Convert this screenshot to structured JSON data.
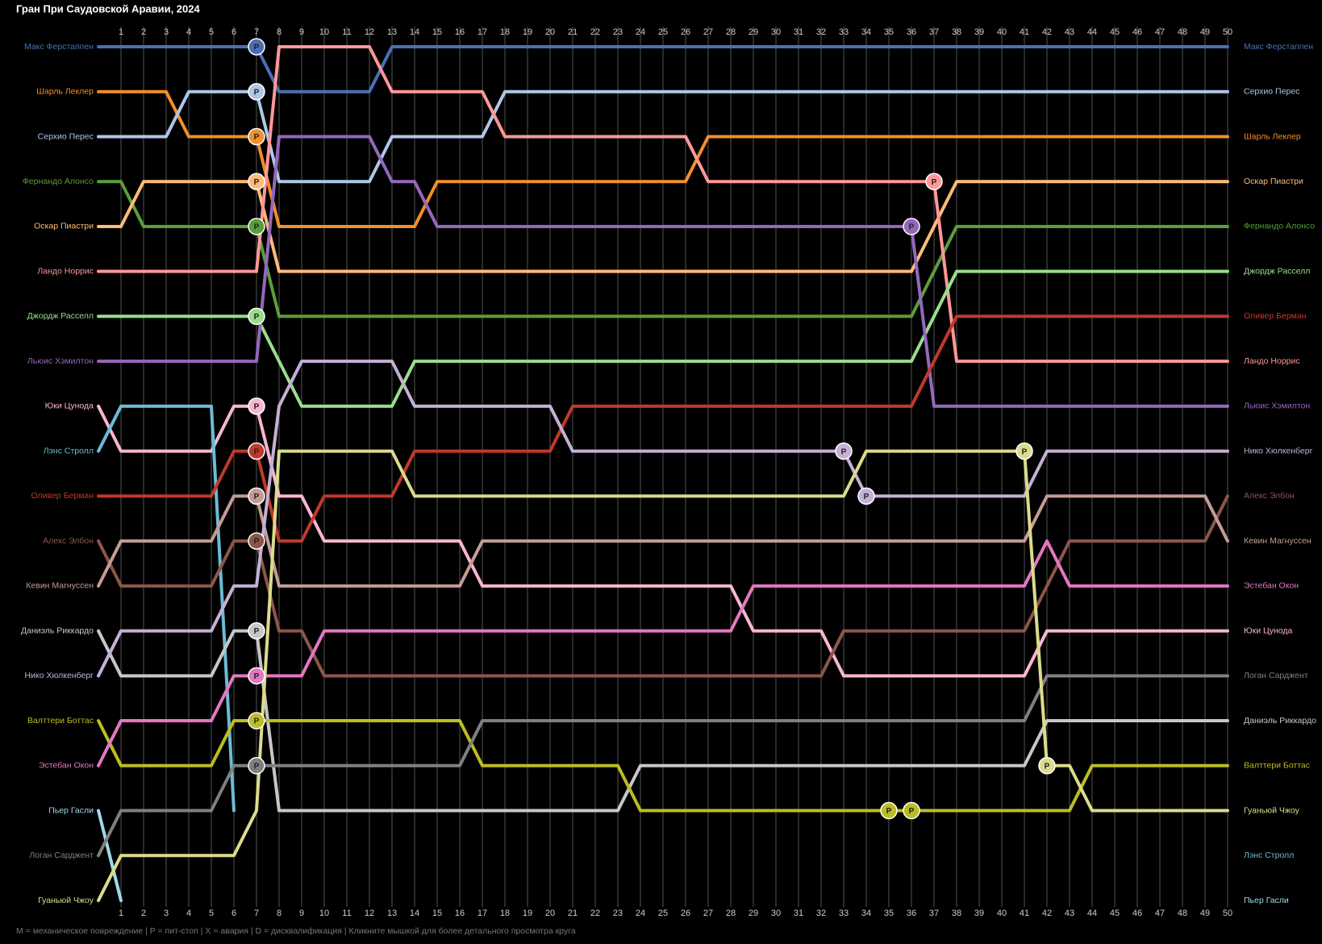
{
  "chart_data": {
    "type": "bump",
    "title": "Гран При Саудовской Аравии, 2024",
    "footnote": "M = механическое повреждение | P = пит-стоп | X = авария | D = дисквалификация | Кликните мышкой для более детального просмотра круга",
    "pit_label": "P",
    "x": [
      0,
      1,
      2,
      3,
      4,
      5,
      6,
      7,
      8,
      9,
      10,
      11,
      12,
      13,
      14,
      15,
      16,
      17,
      18,
      19,
      20,
      21,
      22,
      23,
      24,
      25,
      26,
      27,
      28,
      29,
      30,
      31,
      32,
      33,
      34,
      35,
      36,
      37,
      38,
      39,
      40,
      41,
      42,
      43,
      44,
      45,
      46,
      47,
      48,
      49,
      50
    ],
    "xlim": [
      0,
      50
    ],
    "xticks": [
      1,
      2,
      3,
      4,
      5,
      6,
      7,
      8,
      9,
      10,
      11,
      12,
      13,
      14,
      15,
      16,
      17,
      18,
      19,
      20,
      21,
      22,
      23,
      24,
      25,
      26,
      27,
      28,
      29,
      30,
      31,
      32,
      33,
      34,
      35,
      36,
      37,
      38,
      39,
      40,
      41,
      42,
      43,
      44,
      45,
      46,
      47,
      48,
      49,
      50
    ],
    "ylim": [
      1,
      20
    ],
    "series": [
      {
        "name": "Макс Ферстаппен",
        "color": "#4a6fb5",
        "finish": 1,
        "pits": [
          7
        ],
        "values": [
          1,
          1,
          1,
          1,
          1,
          1,
          1,
          1,
          2,
          2,
          2,
          2,
          2,
          1,
          1,
          1,
          1,
          1,
          1,
          1,
          1,
          1,
          1,
          1,
          1,
          1,
          1,
          1,
          1,
          1,
          1,
          1,
          1,
          1,
          1,
          1,
          1,
          1,
          1,
          1,
          1,
          1,
          1,
          1,
          1,
          1,
          1,
          1,
          1,
          1,
          1
        ]
      },
      {
        "name": "Шарль Леклер",
        "color": "#f28e2b",
        "finish": 3,
        "pits": [
          7
        ],
        "values": [
          2,
          2,
          2,
          2,
          3,
          3,
          3,
          3,
          5,
          5,
          5,
          5,
          5,
          5,
          5,
          4,
          4,
          4,
          4,
          4,
          4,
          4,
          4,
          4,
          4,
          4,
          4,
          3,
          3,
          3,
          3,
          3,
          3,
          3,
          3,
          3,
          3,
          3,
          3,
          3,
          3,
          3,
          3,
          3,
          3,
          3,
          3,
          3,
          3,
          3,
          3
        ]
      },
      {
        "name": "Серхио Перес",
        "color": "#aec7e8",
        "finish": 2,
        "pits": [
          7
        ],
        "values": [
          3,
          3,
          3,
          3,
          2,
          2,
          2,
          2,
          4,
          4,
          4,
          4,
          4,
          3,
          3,
          3,
          3,
          3,
          2,
          2,
          2,
          2,
          2,
          2,
          2,
          2,
          2,
          2,
          2,
          2,
          2,
          2,
          2,
          2,
          2,
          2,
          2,
          2,
          2,
          2,
          2,
          2,
          2,
          2,
          2,
          2,
          2,
          2,
          2,
          2,
          2
        ]
      },
      {
        "name": "Фернандо Алонсо",
        "color": "#5a9e3a",
        "finish": 5,
        "pits": [
          7
        ],
        "values": [
          4,
          4,
          5,
          5,
          5,
          5,
          5,
          5,
          7,
          7,
          7,
          7,
          7,
          7,
          7,
          7,
          7,
          7,
          7,
          7,
          7,
          7,
          7,
          7,
          7,
          7,
          7,
          7,
          7,
          7,
          7,
          7,
          7,
          7,
          7,
          7,
          7,
          6,
          5,
          5,
          5,
          5,
          5,
          5,
          5,
          5,
          5,
          5,
          5,
          5,
          5
        ]
      },
      {
        "name": "Оскар Пиастри",
        "color": "#ffbb78",
        "finish": 4,
        "pits": [
          7
        ],
        "values": [
          5,
          5,
          4,
          4,
          4,
          4,
          4,
          4,
          6,
          6,
          6,
          6,
          6,
          6,
          6,
          6,
          6,
          6,
          6,
          6,
          6,
          6,
          6,
          6,
          6,
          6,
          6,
          6,
          6,
          6,
          6,
          6,
          6,
          6,
          6,
          6,
          6,
          5,
          4,
          4,
          4,
          4,
          4,
          4,
          4,
          4,
          4,
          4,
          4,
          4,
          4
        ]
      },
      {
        "name": "Ландо Норрис",
        "color": "#ff9896",
        "finish": 8,
        "pits": [
          37
        ],
        "values": [
          6,
          6,
          6,
          6,
          6,
          6,
          6,
          6,
          1,
          1,
          1,
          1,
          1,
          2,
          2,
          2,
          2,
          2,
          3,
          3,
          3,
          3,
          3,
          3,
          3,
          3,
          3,
          4,
          4,
          4,
          4,
          4,
          4,
          4,
          4,
          4,
          4,
          4,
          8,
          8,
          8,
          8,
          8,
          8,
          8,
          8,
          8,
          8,
          8,
          8,
          8
        ]
      },
      {
        "name": "Джордж Расселл",
        "color": "#98df8a",
        "finish": 6,
        "pits": [
          7
        ],
        "values": [
          7,
          7,
          7,
          7,
          7,
          7,
          7,
          7,
          8,
          9,
          9,
          9,
          9,
          9,
          8,
          8,
          8,
          8,
          8,
          8,
          8,
          8,
          8,
          8,
          8,
          8,
          8,
          8,
          8,
          8,
          8,
          8,
          8,
          8,
          8,
          8,
          8,
          7,
          6,
          6,
          6,
          6,
          6,
          6,
          6,
          6,
          6,
          6,
          6,
          6,
          6
        ]
      },
      {
        "name": "Льюис Хэмилтон",
        "color": "#9467bd",
        "finish": 9,
        "pits": [
          36
        ],
        "values": [
          8,
          8,
          8,
          8,
          8,
          8,
          8,
          8,
          3,
          3,
          3,
          3,
          3,
          4,
          4,
          5,
          5,
          5,
          5,
          5,
          5,
          5,
          5,
          5,
          5,
          5,
          5,
          5,
          5,
          5,
          5,
          5,
          5,
          5,
          5,
          5,
          5,
          9,
          9,
          9,
          9,
          9,
          9,
          9,
          9,
          9,
          9,
          9,
          9,
          9,
          9
        ]
      },
      {
        "name": "Юки Цунода",
        "color": "#f7b6d2",
        "finish": 14,
        "pits": [
          7
        ],
        "values": [
          9,
          10,
          10,
          10,
          10,
          10,
          9,
          9,
          11,
          11,
          12,
          12,
          12,
          12,
          12,
          12,
          12,
          13,
          13,
          13,
          13,
          13,
          13,
          13,
          13,
          13,
          13,
          13,
          13,
          14,
          14,
          14,
          14,
          15,
          15,
          15,
          15,
          15,
          15,
          15,
          15,
          15,
          14,
          14,
          14,
          14,
          14,
          14,
          14,
          14,
          14
        ]
      },
      {
        "name": "Лэнс Стролл",
        "color": "#6bbcd4",
        "finish": 19,
        "pits": [],
        "values": [
          10,
          9,
          9,
          9,
          9,
          9,
          18,
          null,
          null,
          null,
          null,
          null,
          null,
          null,
          null,
          null,
          null,
          null,
          null,
          null,
          null,
          null,
          null,
          null,
          null,
          null,
          null,
          null,
          null,
          null,
          null,
          null,
          null,
          null,
          null,
          null,
          null,
          null,
          null,
          null,
          null,
          null,
          null,
          null,
          null,
          null,
          null,
          null,
          null,
          null,
          null
        ]
      },
      {
        "name": "Оливер Берман",
        "color": "#c0392b",
        "finish": 7,
        "pits": [
          7
        ],
        "values": [
          11,
          11,
          11,
          11,
          11,
          11,
          10,
          10,
          12,
          12,
          11,
          11,
          11,
          11,
          10,
          10,
          10,
          10,
          10,
          10,
          10,
          9,
          9,
          9,
          9,
          9,
          9,
          9,
          9,
          9,
          9,
          9,
          9,
          9,
          9,
          9,
          9,
          8,
          7,
          7,
          7,
          7,
          7,
          7,
          7,
          7,
          7,
          7,
          7,
          7,
          7
        ]
      },
      {
        "name": "Алекс Элбон",
        "color": "#8c564b",
        "finish": 11,
        "pits": [
          7
        ],
        "values": [
          12,
          13,
          13,
          13,
          13,
          13,
          12,
          12,
          14,
          14,
          15,
          15,
          15,
          15,
          15,
          15,
          15,
          15,
          15,
          15,
          15,
          15,
          15,
          15,
          15,
          15,
          15,
          15,
          15,
          15,
          15,
          15,
          15,
          14,
          14,
          14,
          14,
          14,
          14,
          14,
          14,
          14,
          13,
          12,
          12,
          12,
          12,
          12,
          12,
          12,
          11
        ]
      },
      {
        "name": "Кевин Магнуссен",
        "color": "#c49c94",
        "finish": 12,
        "pits": [
          7
        ],
        "values": [
          13,
          12,
          12,
          12,
          12,
          12,
          11,
          11,
          13,
          13,
          13,
          13,
          13,
          13,
          13,
          13,
          13,
          12,
          12,
          12,
          12,
          12,
          12,
          12,
          12,
          12,
          12,
          12,
          12,
          12,
          12,
          12,
          12,
          12,
          12,
          12,
          12,
          12,
          12,
          12,
          12,
          12,
          11,
          11,
          11,
          11,
          11,
          11,
          11,
          11,
          12
        ]
      },
      {
        "name": "Даниэль Риккардо",
        "color": "#c7c7c7",
        "finish": 16,
        "pits": [
          7
        ],
        "values": [
          14,
          15,
          15,
          15,
          15,
          15,
          14,
          14,
          18,
          18,
          18,
          18,
          18,
          18,
          18,
          18,
          18,
          18,
          18,
          18,
          18,
          18,
          18,
          18,
          17,
          17,
          17,
          17,
          17,
          17,
          17,
          17,
          17,
          17,
          17,
          17,
          17,
          17,
          17,
          17,
          17,
          17,
          16,
          16,
          16,
          16,
          16,
          16,
          16,
          16,
          16
        ]
      },
      {
        "name": "Нико Хюлкенберг",
        "color": "#c5b0d5",
        "finish": 10,
        "pits": [
          33,
          34
        ],
        "values": [
          15,
          14,
          14,
          14,
          14,
          14,
          13,
          13,
          9,
          8,
          8,
          8,
          8,
          8,
          9,
          9,
          9,
          9,
          9,
          9,
          9,
          10,
          10,
          10,
          10,
          10,
          10,
          10,
          10,
          10,
          10,
          10,
          10,
          10,
          11,
          11,
          11,
          11,
          11,
          11,
          11,
          11,
          10,
          10,
          10,
          10,
          10,
          10,
          10,
          10,
          10
        ]
      },
      {
        "name": "Валттери Боттас",
        "color": "#bcbd22",
        "finish": 17,
        "pits": [
          7,
          35,
          36
        ],
        "values": [
          16,
          17,
          17,
          17,
          17,
          17,
          16,
          16,
          16,
          16,
          16,
          16,
          16,
          16,
          16,
          16,
          16,
          17,
          17,
          17,
          17,
          17,
          17,
          17,
          18,
          18,
          18,
          18,
          18,
          18,
          18,
          18,
          18,
          18,
          18,
          18,
          18,
          18,
          18,
          18,
          18,
          18,
          18,
          18,
          17,
          17,
          17,
          17,
          17,
          17,
          17
        ]
      },
      {
        "name": "Эстебан Окон",
        "color": "#e377c2",
        "finish": 13,
        "pits": [
          7
        ],
        "values": [
          17,
          16,
          16,
          16,
          16,
          16,
          15,
          15,
          15,
          15,
          14,
          14,
          14,
          14,
          14,
          14,
          14,
          14,
          14,
          14,
          14,
          14,
          14,
          14,
          14,
          14,
          14,
          14,
          14,
          13,
          13,
          13,
          13,
          13,
          13,
          13,
          13,
          13,
          13,
          13,
          13,
          13,
          12,
          13,
          13,
          13,
          13,
          13,
          13,
          13,
          13
        ]
      },
      {
        "name": "Пьер Гасли",
        "color": "#9edae5",
        "finish": 20,
        "pits": [],
        "values": [
          18,
          20,
          null,
          null,
          null,
          null,
          null,
          null,
          null,
          null,
          null,
          null,
          null,
          null,
          null,
          null,
          null,
          null,
          null,
          null,
          null,
          null,
          null,
          null,
          null,
          null,
          null,
          null,
          null,
          null,
          null,
          null,
          null,
          null,
          null,
          null,
          null,
          null,
          null,
          null,
          null,
          null,
          null,
          null,
          null,
          null,
          null,
          null,
          null,
          null,
          null
        ]
      },
      {
        "name": "Логан Сарджент",
        "color": "#7f7f7f",
        "finish": 15,
        "pits": [
          7
        ],
        "values": [
          19,
          18,
          18,
          18,
          18,
          18,
          17,
          17,
          17,
          17,
          17,
          17,
          17,
          17,
          17,
          17,
          17,
          16,
          16,
          16,
          16,
          16,
          16,
          16,
          16,
          16,
          16,
          16,
          16,
          16,
          16,
          16,
          16,
          16,
          16,
          16,
          16,
          16,
          16,
          16,
          16,
          16,
          15,
          15,
          15,
          15,
          15,
          15,
          15,
          15,
          15
        ]
      },
      {
        "name": "Гуаньюй Чжоу",
        "color": "#dbdb8d",
        "finish": 18,
        "pits": [
          41,
          42
        ],
        "values": [
          20,
          19,
          19,
          19,
          19,
          19,
          19,
          18,
          10,
          10,
          10,
          10,
          10,
          10,
          11,
          11,
          11,
          11,
          11,
          11,
          11,
          11,
          11,
          11,
          11,
          11,
          11,
          11,
          11,
          11,
          11,
          11,
          11,
          11,
          10,
          10,
          10,
          10,
          10,
          10,
          10,
          10,
          17,
          17,
          18,
          18,
          18,
          18,
          18,
          18,
          18
        ]
      }
    ]
  }
}
